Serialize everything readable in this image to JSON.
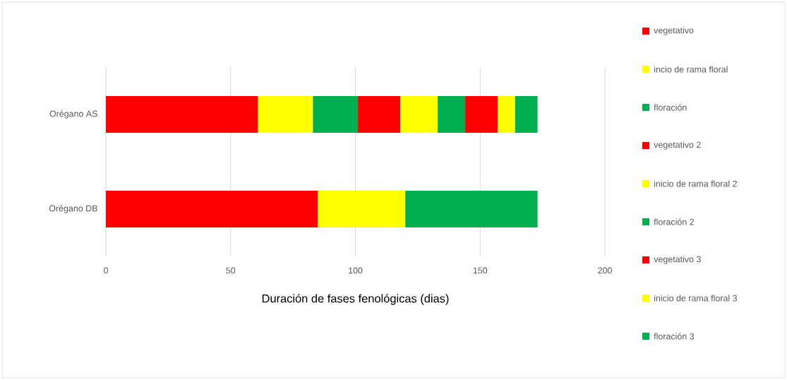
{
  "chart_data": {
    "type": "bar",
    "orientation": "horizontal",
    "stacked": true,
    "xlabel": "Duración de fases fenológicas (dias)",
    "categories": [
      "Orégano AS",
      "Orégano DB"
    ],
    "series": [
      {
        "name": "vegetativo",
        "color": "#ff0000",
        "values": [
          61,
          85
        ]
      },
      {
        "name": "incio de rama floral",
        "color": "#ffff00",
        "values": [
          22,
          35
        ]
      },
      {
        "name": "floración",
        "color": "#00b050",
        "values": [
          18,
          53
        ]
      },
      {
        "name": "vegetativo 2",
        "color": "#ff0000",
        "values": [
          17,
          null
        ]
      },
      {
        "name": "inicio de rama floral 2",
        "color": "#ffff00",
        "values": [
          15,
          null
        ]
      },
      {
        "name": "floración 2",
        "color": "#00b050",
        "values": [
          11,
          null
        ]
      },
      {
        "name": "vegetativo 3",
        "color": "#ff0000",
        "values": [
          13,
          null
        ]
      },
      {
        "name": "inicio de rama floral 3",
        "color": "#ffff00",
        "values": [
          7,
          null
        ]
      },
      {
        "name": "floración 3",
        "color": "#00b050",
        "values": [
          9,
          null
        ]
      }
    ],
    "xlim": [
      0,
      200
    ],
    "xticks": [
      0,
      50,
      100,
      150,
      200
    ],
    "grid": "x",
    "legend": "right"
  }
}
